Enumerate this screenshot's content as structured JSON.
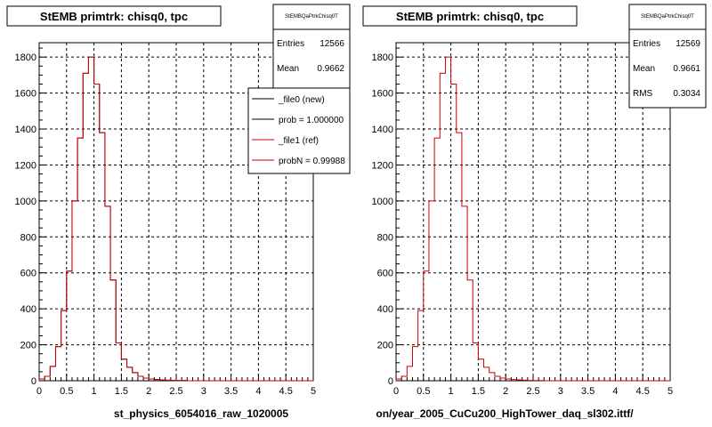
{
  "colors": {
    "new": "#000000",
    "ref": "#cc0000",
    "grid": "#000000"
  },
  "panels": [
    {
      "title": "StEMB primtrk: chisq0, tpc",
      "stats_name": "StEMBQaPtrkChisq0T",
      "stats": [
        {
          "label": "Entries",
          "value": "12566"
        },
        {
          "label": "Mean",
          "value": "0.9662"
        }
      ],
      "legend": [
        {
          "label": "_file0 (new)"
        },
        {
          "label": "prob = 1.000000"
        },
        {
          "label": "_file1 (ref)"
        },
        {
          "label": "probN = 0.99988"
        }
      ],
      "xlabel": "st_physics_6054016_raw_1020005"
    },
    {
      "title": "StEMB primtrk: chisq0, tpc",
      "stats_name": "StEMBQaPtrkChisq0T",
      "stats": [
        {
          "label": "Entries",
          "value": "12569"
        },
        {
          "label": "Mean",
          "value": "0.9661"
        },
        {
          "label": "RMS",
          "value": "0.3034"
        }
      ],
      "legend": [],
      "xlabel": "on/year_2005_CuCu200_HighTower_daq_sl302.ittf/"
    }
  ],
  "chart_data": [
    {
      "type": "bar",
      "title": "StEMB primtrk: chisq0, tpc",
      "xlim": [
        0,
        5
      ],
      "ylim": [
        0,
        1880
      ],
      "xticks": [
        "0",
        "0.5",
        "1",
        "1.5",
        "2",
        "2.5",
        "3",
        "3.5",
        "4",
        "4.5",
        "5"
      ],
      "yticks": [
        "0",
        "200",
        "400",
        "600",
        "800",
        "1000",
        "1200",
        "1400",
        "1600",
        "1800"
      ],
      "grid": true,
      "legend_position": "top-right",
      "bin_width": 0.1,
      "bin_edges_start": 0,
      "series": [
        {
          "name": "_file0 (new)",
          "values": [
            10,
            25,
            80,
            190,
            390,
            610,
            1000,
            1350,
            1710,
            1800,
            1650,
            1380,
            970,
            560,
            210,
            120,
            75,
            45,
            25,
            15,
            10,
            7,
            5,
            3,
            2,
            1,
            1,
            0,
            0,
            0,
            0,
            0,
            0,
            0,
            0,
            0,
            0,
            0,
            0,
            0,
            0,
            0,
            0,
            0,
            0,
            0,
            0,
            0,
            0,
            0
          ]
        },
        {
          "name": "_file1 (ref)",
          "values": [
            10,
            25,
            80,
            190,
            390,
            610,
            1000,
            1350,
            1710,
            1800,
            1650,
            1380,
            970,
            560,
            210,
            120,
            75,
            45,
            25,
            15,
            10,
            7,
            5,
            3,
            2,
            1,
            1,
            0,
            0,
            0,
            0,
            0,
            0,
            0,
            0,
            0,
            0,
            0,
            0,
            0,
            0,
            0,
            0,
            0,
            0,
            0,
            0,
            0,
            0,
            0
          ]
        }
      ]
    },
    {
      "type": "bar",
      "title": "StEMB primtrk: chisq0, tpc",
      "xlim": [
        0,
        5
      ],
      "ylim": [
        0,
        1880
      ],
      "xticks": [
        "0",
        "0.5",
        "1",
        "1.5",
        "2",
        "2.5",
        "3",
        "3.5",
        "4",
        "4.5",
        "5"
      ],
      "yticks": [
        "0",
        "200",
        "400",
        "600",
        "800",
        "1000",
        "1200",
        "1400",
        "1600",
        "1800"
      ],
      "grid": true,
      "bin_width": 0.1,
      "bin_edges_start": 0,
      "series": [
        {
          "values": [
            10,
            25,
            80,
            190,
            390,
            610,
            1000,
            1350,
            1710,
            1800,
            1650,
            1380,
            970,
            560,
            210,
            120,
            75,
            45,
            25,
            15,
            10,
            7,
            5,
            3,
            2,
            1,
            1,
            0,
            0,
            0,
            0,
            0,
            0,
            0,
            0,
            0,
            0,
            0,
            0,
            0,
            0,
            0,
            0,
            0,
            0,
            0,
            0,
            0,
            0,
            0
          ]
        }
      ]
    }
  ]
}
